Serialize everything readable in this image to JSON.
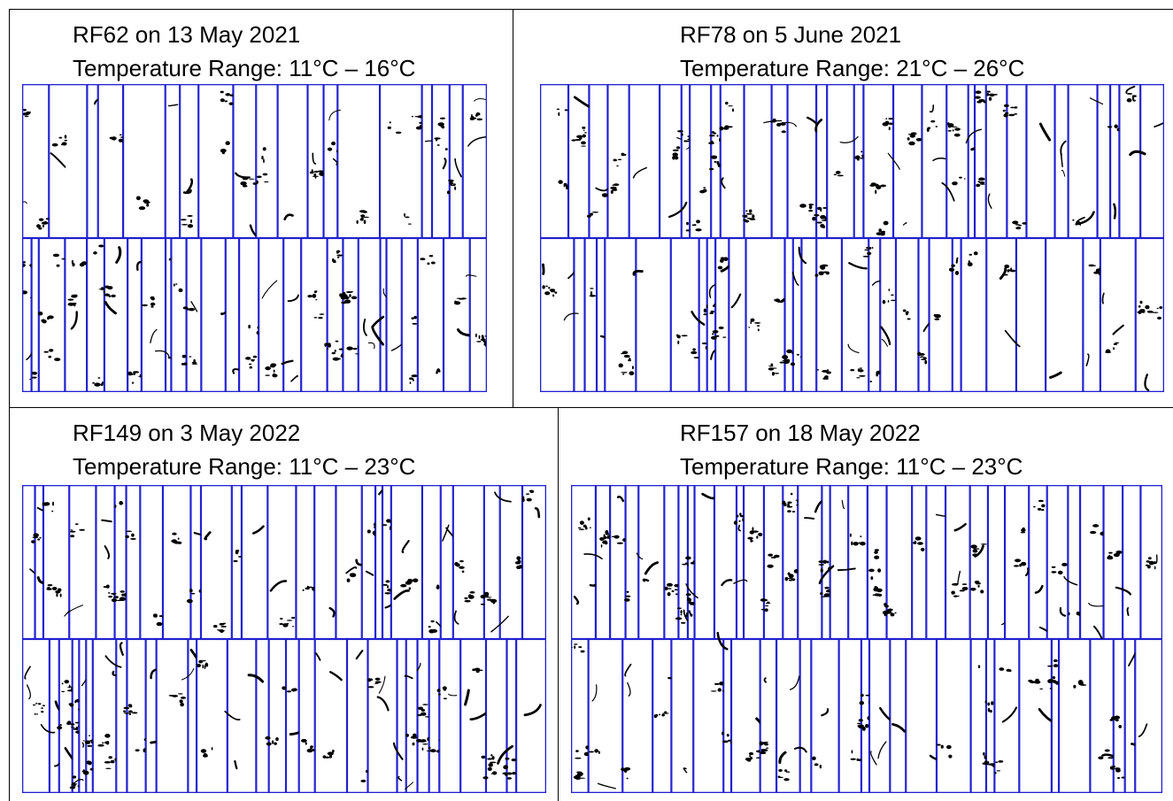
{
  "panels": [
    {
      "id": "rf62",
      "title": "RF62 on 13 May 2021",
      "temperature": "Temperature Range: 11°C – 16°C",
      "rows": [
        19,
        26
      ],
      "seed": 62
    },
    {
      "id": "rf78",
      "title": "RF78 on 5 June 2021",
      "temperature": "Temperature Range: 21°C – 26°C",
      "rows": [
        31,
        30
      ],
      "seed": 78
    },
    {
      "id": "rf149",
      "title": "RF149 on 3 May 2022",
      "temperature": "Temperature Range: 11°C – 23°C",
      "rows": [
        27,
        30
      ],
      "seed": 149
    },
    {
      "id": "rf157",
      "title": "RF157 on 18 May 2022",
      "temperature": "Temperature Range: 11°C – 23°C",
      "rows": [
        33,
        28
      ],
      "seed": 157
    }
  ],
  "colors": {
    "strip_border": "#2020d0",
    "particle": "#000000",
    "rule": "#000000"
  }
}
